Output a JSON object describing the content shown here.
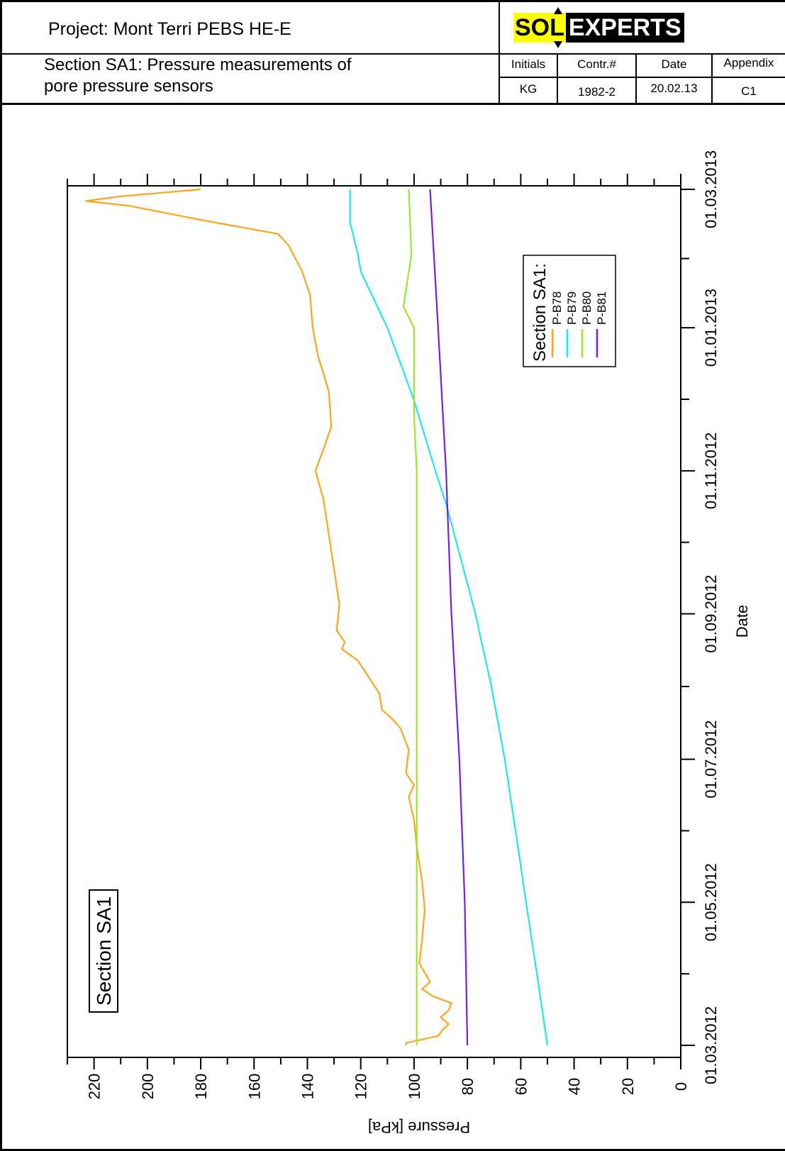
{
  "header": {
    "project": "Project: Mont Terri PEBS HE-E",
    "section_line1": "Section SA1: Pressure measurements of",
    "section_line2": "pore pressure sensors",
    "logo_sol": "SOL",
    "logo_experts": "EXPERTS",
    "columns": [
      {
        "label": "Initials",
        "value": "KG"
      },
      {
        "label": "Contr.#",
        "value": "1982-2"
      },
      {
        "label": "Date",
        "value": "20.02.13"
      },
      {
        "label": "Appendix",
        "value": "C1"
      }
    ]
  },
  "chart_data": {
    "type": "line",
    "orientation": "rotated 90° counter-clockwise (date axis vertical, pressure axis horizontal)",
    "annotation": "Section SA1",
    "xlabel": "Date",
    "ylabel": "Pressure [kPa]",
    "ylim": [
      0,
      230
    ],
    "y_ticks": [
      0,
      20,
      40,
      60,
      80,
      100,
      120,
      140,
      160,
      180,
      200,
      220
    ],
    "x_tick_labels": [
      "01.03.2012",
      "01.05.2012",
      "01.07.2012",
      "01.09.2012",
      "01.11.2012",
      "01.01.2013",
      "01.03.2013"
    ],
    "x_range": [
      "01.03.2012",
      "01.03.2013"
    ],
    "legend": {
      "title": "Section SA1:",
      "position": "upper-right"
    },
    "colors": {
      "P-B78": "#ffa31a",
      "P-B79": "#1ee6f0",
      "P-B80": "#99e62e",
      "P-B81": "#7a1fd6"
    },
    "series": [
      {
        "name": "P-B78",
        "points": [
          [
            "2012-03-01",
            103
          ],
          [
            "2012-03-02",
            103
          ],
          [
            "2012-03-05",
            91
          ],
          [
            "2012-03-08",
            89
          ],
          [
            "2012-03-10",
            87
          ],
          [
            "2012-03-13",
            90
          ],
          [
            "2012-03-16",
            87
          ],
          [
            "2012-03-19",
            86
          ],
          [
            "2012-03-22",
            93
          ],
          [
            "2012-03-25",
            97
          ],
          [
            "2012-03-28",
            94
          ],
          [
            "2012-04-05",
            98
          ],
          [
            "2012-04-15",
            97
          ],
          [
            "2012-04-28",
            96
          ],
          [
            "2012-05-10",
            97
          ],
          [
            "2012-05-25",
            99
          ],
          [
            "2012-06-05",
            100
          ],
          [
            "2012-06-15",
            102
          ],
          [
            "2012-06-20",
            100
          ],
          [
            "2012-06-25",
            103
          ],
          [
            "2012-07-05",
            102
          ],
          [
            "2012-07-14",
            105
          ],
          [
            "2012-07-18",
            108
          ],
          [
            "2012-07-22",
            112
          ],
          [
            "2012-07-29",
            113
          ],
          [
            "2012-08-05",
            117
          ],
          [
            "2012-08-12",
            121
          ],
          [
            "2012-08-17",
            127
          ],
          [
            "2012-08-20",
            126
          ],
          [
            "2012-08-25",
            129
          ],
          [
            "2012-09-05",
            128
          ],
          [
            "2012-09-20",
            130
          ],
          [
            "2012-10-05",
            132
          ],
          [
            "2012-10-20",
            134
          ],
          [
            "2012-11-01",
            137
          ],
          [
            "2012-11-10",
            134
          ],
          [
            "2012-11-20",
            131
          ],
          [
            "2012-12-05",
            132
          ],
          [
            "2012-12-20",
            136
          ],
          [
            "2013-01-01",
            138
          ],
          [
            "2013-01-15",
            139
          ],
          [
            "2013-01-25",
            142
          ],
          [
            "2013-02-05",
            147
          ],
          [
            "2013-02-10",
            151
          ],
          [
            "2013-02-16",
            180
          ],
          [
            "2013-02-22",
            207
          ],
          [
            "2013-02-24",
            223
          ],
          [
            "2013-02-26",
            210
          ],
          [
            "2013-03-01",
            180
          ]
        ]
      },
      {
        "name": "P-B79",
        "points": [
          [
            "2012-03-01",
            50
          ],
          [
            "2012-04-01",
            54
          ],
          [
            "2012-05-01",
            58
          ],
          [
            "2012-06-01",
            62
          ],
          [
            "2012-07-01",
            66
          ],
          [
            "2012-08-01",
            71
          ],
          [
            "2012-09-01",
            77
          ],
          [
            "2012-10-01",
            84
          ],
          [
            "2012-10-18",
            88
          ],
          [
            "2012-11-01",
            92
          ],
          [
            "2012-12-01",
            100
          ],
          [
            "2013-01-01",
            110
          ],
          [
            "2013-01-25",
            120
          ],
          [
            "2013-02-01",
            121
          ],
          [
            "2013-02-15",
            124
          ],
          [
            "2013-03-01",
            124
          ]
        ]
      },
      {
        "name": "P-B80",
        "points": [
          [
            "2012-03-01",
            99
          ],
          [
            "2012-04-01",
            99
          ],
          [
            "2012-05-01",
            99
          ],
          [
            "2012-06-01",
            99
          ],
          [
            "2012-07-01",
            99
          ],
          [
            "2012-08-01",
            99
          ],
          [
            "2012-09-01",
            99
          ],
          [
            "2012-10-01",
            99
          ],
          [
            "2012-11-01",
            99
          ],
          [
            "2012-11-25",
            100
          ],
          [
            "2012-12-01",
            100
          ],
          [
            "2013-01-01",
            100
          ],
          [
            "2013-01-10",
            104
          ],
          [
            "2013-02-01",
            101
          ],
          [
            "2013-03-01",
            102
          ]
        ]
      },
      {
        "name": "P-B81",
        "points": [
          [
            "2012-03-01",
            80
          ],
          [
            "2012-05-01",
            81
          ],
          [
            "2012-07-01",
            83
          ],
          [
            "2012-09-01",
            86
          ],
          [
            "2012-11-01",
            88
          ],
          [
            "2013-01-01",
            91
          ],
          [
            "2013-03-01",
            94
          ]
        ]
      }
    ]
  }
}
